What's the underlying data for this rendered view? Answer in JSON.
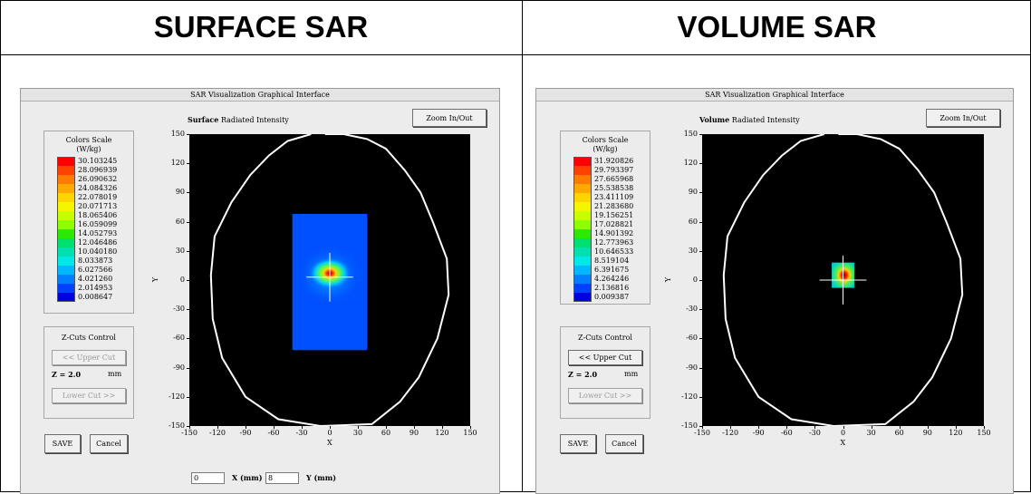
{
  "headers": {
    "left": "SURFACE SAR",
    "right": "VOLUME SAR"
  },
  "window_title": "SAR Visualization Graphical Interface",
  "zoom_label": "Zoom In/Out",
  "left": {
    "mode_label": "Surface",
    "intensity_label": "Radiated Intensity",
    "scale_title_1": "Colors Scale",
    "scale_title_2": "(W/kg)",
    "scale_values": [
      "30.103245",
      "28.096939",
      "26.090632",
      "24.084326",
      "22.078019",
      "20.071713",
      "18.065406",
      "16.059099",
      "14.052793",
      "12.046486",
      "10.040180",
      "8.033873",
      "6.027566",
      "4.021260",
      "2.014953",
      "0.008647"
    ],
    "zcuts_title": "Z-Cuts Control",
    "upper_cut": "<< Upper Cut",
    "z_label": "Z = 2.0",
    "z_unit": "mm",
    "lower_cut": "Lower Cut >>",
    "save": "SAVE",
    "cancel": "Cancel",
    "x_input": "0",
    "x_input_label": "X (mm)",
    "y_input": "8",
    "y_input_label": "Y (mm)"
  },
  "right": {
    "mode_label": "Volume",
    "intensity_label": "Radiated Intensity",
    "scale_title_1": "Colors Scale",
    "scale_title_2": "(W/kg)",
    "scale_values": [
      "31.920826",
      "29.793397",
      "27.665968",
      "25.538538",
      "23.411109",
      "21.283680",
      "19.156251",
      "17.028821",
      "14.901392",
      "12.773963",
      "10.646533",
      "8.519104",
      "6.391675",
      "4.264246",
      "2.136816",
      "0.009387"
    ],
    "zcuts_title": "Z-Cuts Control",
    "upper_cut": "<< Upper Cut",
    "z_label": "Z = 2.0",
    "z_unit": "mm",
    "lower_cut": "Lower Cut >>",
    "save": "SAVE",
    "cancel": "Cancel"
  },
  "axis": {
    "x_ticks": [
      "-150",
      "-120",
      "-90",
      "-60",
      "-30",
      "0",
      "30",
      "60",
      "90",
      "120",
      "150"
    ],
    "y_ticks": [
      "150",
      "120",
      "90",
      "60",
      "30",
      "0",
      "-30",
      "-60",
      "-90",
      "-120",
      "-150"
    ],
    "x_label": "X",
    "y_label": "Y"
  },
  "colors": {
    "scale": [
      "#ff0000",
      "#ff4000",
      "#ff7a00",
      "#ffa800",
      "#ffd500",
      "#f5f500",
      "#c8ff00",
      "#8cff00",
      "#2ee800",
      "#00e070",
      "#00e0b0",
      "#00e8e8",
      "#00b8ff",
      "#0080ff",
      "#0040ff",
      "#0000e0"
    ],
    "plot_bg": "#000000",
    "surface_bg": "#0050ff"
  }
}
